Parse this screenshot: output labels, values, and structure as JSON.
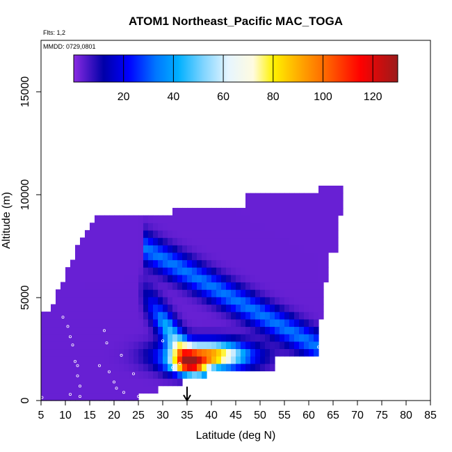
{
  "chart_data": {
    "type": "heatmap",
    "title": "ATOM1 Northeast_Pacific MAC_TOGA",
    "flights_note": "Flts: 1,2",
    "dates_note": "MMDD: 0729,0801",
    "xlabel": "Latitude (deg N)",
    "ylabel": "Altitude (m)",
    "xlim": [
      5,
      85
    ],
    "ylim": [
      0,
      17500
    ],
    "x_ticks": [
      "5",
      "10",
      "15",
      "20",
      "25",
      "30",
      "35",
      "40",
      "45",
      "50",
      "55",
      "60",
      "65",
      "70",
      "75",
      "80",
      "85"
    ],
    "y_ticks": [
      "0",
      "5000",
      "10000",
      "15000"
    ],
    "colorbar": {
      "range": [
        0,
        130
      ],
      "ticks": [
        "20",
        "40",
        "60",
        "80",
        "100",
        "120"
      ],
      "stops": [
        {
          "v": 0,
          "color": "#8a2be2"
        },
        {
          "v": 12,
          "color": "#0000a8"
        },
        {
          "v": 22,
          "color": "#0000ff"
        },
        {
          "v": 33,
          "color": "#0077ff"
        },
        {
          "v": 42,
          "color": "#00b0ff"
        },
        {
          "v": 52,
          "color": "#7fd4ff"
        },
        {
          "v": 62,
          "color": "#e6f5ff"
        },
        {
          "v": 72,
          "color": "#fffbe0"
        },
        {
          "v": 80,
          "color": "#fff200"
        },
        {
          "v": 92,
          "color": "#ffa000"
        },
        {
          "v": 102,
          "color": "#ff6000"
        },
        {
          "v": 115,
          "color": "#ff0000"
        },
        {
          "v": 130,
          "color": "#9b1b1b"
        }
      ]
    },
    "marker_latitude": 35,
    "colors": {
      "background": "#ffffff",
      "frame": "#000000",
      "points": "#ffffff"
    }
  }
}
